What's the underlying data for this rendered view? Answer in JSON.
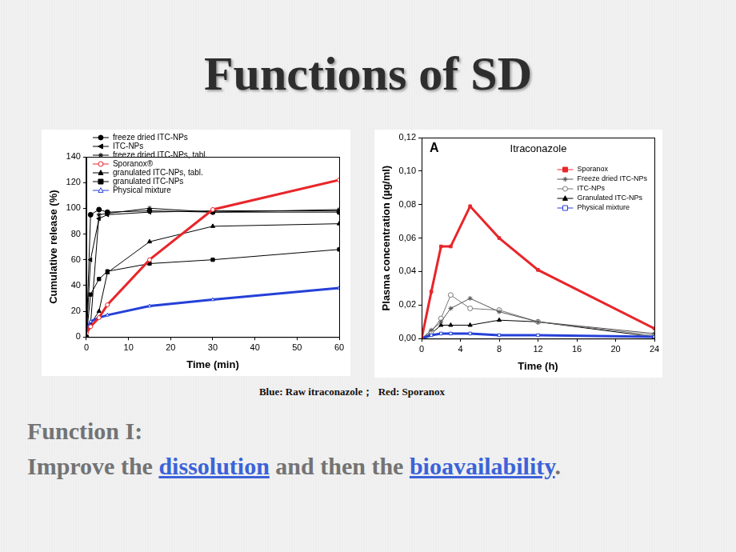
{
  "title": "Functions of SD",
  "chart_data": [
    {
      "type": "line",
      "x_label": "Time (min)",
      "y_label": "Cumulative release (%)",
      "x": [
        0,
        1,
        3,
        5,
        15,
        30,
        60
      ],
      "xlim": [
        0,
        60
      ],
      "xticks": [
        0,
        10,
        20,
        30,
        40,
        50,
        60
      ],
      "ylim": [
        0,
        140
      ],
      "yticks": [
        0,
        20,
        40,
        60,
        80,
        100,
        120,
        140
      ],
      "grid": false,
      "legend": "upper left",
      "series": [
        {
          "name": "freeze dried ITC-NPs",
          "color": "#000000",
          "marker": "circle",
          "values": [
            0,
            95,
            99,
            97,
            98,
            97,
            97
          ]
        },
        {
          "name": "ITC-NPs",
          "color": "#000000",
          "marker": "left_triangle",
          "values": [
            0,
            60,
            92,
            95,
            97,
            98,
            98
          ]
        },
        {
          "name": "freeze dried ITC-NPs, tabl.",
          "color": "#000000",
          "marker": "star",
          "values": [
            0,
            10,
            95,
            96,
            100,
            97,
            99
          ]
        },
        {
          "name": "Sporanox®",
          "color": "#e8262b",
          "marker": "open_circle",
          "values": [
            3,
            8,
            15,
            25,
            60,
            99,
            122
          ]
        },
        {
          "name": "granulated ITC-NPs, tabl.",
          "color": "#000000",
          "marker": "triangle",
          "values": [
            0,
            10,
            20,
            50,
            74,
            86,
            88
          ]
        },
        {
          "name": "granulated ITC-NPs",
          "color": "#000000",
          "marker": "square",
          "values": [
            0,
            33,
            45,
            51,
            57,
            60,
            68
          ]
        },
        {
          "name": "Physical mixture",
          "color": "#2540d8",
          "marker": "open_triangle",
          "values": [
            5,
            12,
            15,
            17,
            24,
            29,
            38
          ]
        }
      ]
    },
    {
      "type": "line",
      "title": "Itraconazole",
      "annotations": [
        {
          "text": "A"
        }
      ],
      "x_label": "Time (h)",
      "y_label": "Plasma concentration (µg/ml)",
      "x": [
        0,
        1,
        2,
        3,
        5,
        8,
        12,
        24
      ],
      "xlim": [
        0,
        24
      ],
      "xticks": [
        0,
        4,
        8,
        12,
        16,
        20,
        24
      ],
      "ylim": [
        0,
        0.12
      ],
      "yticks": [
        {
          "value": 0,
          "label": "0,00"
        },
        {
          "value": 0.02,
          "label": "0,02"
        },
        {
          "value": 0.04,
          "label": "0,04"
        },
        {
          "value": 0.06,
          "label": "0,06"
        },
        {
          "value": 0.08,
          "label": "0,08"
        },
        {
          "value": 0.1,
          "label": "0,10"
        },
        {
          "value": 0.12,
          "label": "0,12"
        }
      ],
      "grid": false,
      "legend": "upper right",
      "series": [
        {
          "name": "Sporanox",
          "color": "#e8262b",
          "marker": "square",
          "values": [
            0,
            0.028,
            0.055,
            0.055,
            0.079,
            0.06,
            0.041,
            0.006
          ]
        },
        {
          "name": "Freeze dried ITC-NPs",
          "color": "#555555",
          "marker": "star",
          "values": [
            0,
            0.005,
            0.01,
            0.018,
            0.024,
            0.016,
            0.01,
            0.003
          ]
        },
        {
          "name": "ITC-NPs",
          "color": "#777777",
          "marker": "open_circle",
          "values": [
            0,
            0.004,
            0.012,
            0.026,
            0.018,
            0.017,
            0.01,
            0.002
          ]
        },
        {
          "name": "Granulated ITC-NPs",
          "color": "#000000",
          "marker": "triangle",
          "values": [
            0,
            0.003,
            0.008,
            0.008,
            0.008,
            0.011,
            0.01,
            0.001
          ]
        },
        {
          "name": "Physical mixture",
          "color": "#2540d8",
          "marker": "open_square",
          "values": [
            0,
            0.002,
            0.003,
            0.003,
            0.003,
            0.002,
            0.002,
            0.001
          ]
        }
      ]
    }
  ],
  "caption": "Blue: Raw itraconazole；  Red: Sporanox",
  "function_label": "Function I:",
  "statement": {
    "text": "Improve the dissolution and then the bioavailability.",
    "highlights": [
      "dissolution",
      "bioavailability"
    ]
  }
}
